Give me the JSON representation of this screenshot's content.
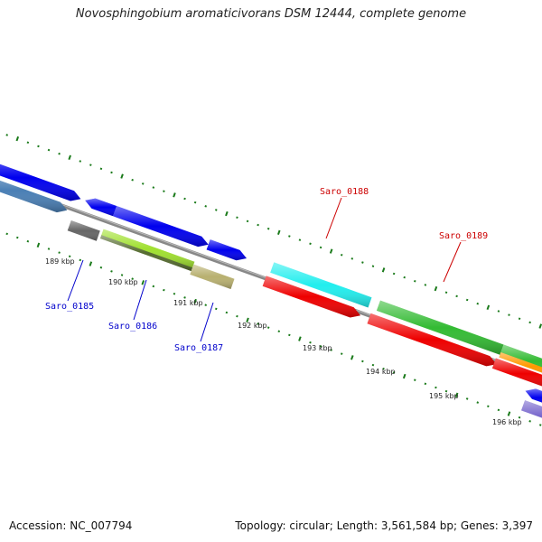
{
  "title": "Novosphingobium aromaticivorans DSM 12444, complete genome",
  "accession": "Accession: NC_007794",
  "summary": "Topology: circular; Length: 3,561,584 bp; Genes: 3,397",
  "kbp_labels": [
    "189 kbp",
    "190 kbp",
    "191 kbp",
    "192 kbp",
    "193 kbp",
    "194 kbp",
    "195 kbp",
    "196 kbp"
  ],
  "gene_labels": [
    {
      "text": "Saro_0185",
      "color": "#0000cc"
    },
    {
      "text": "Saro_0186",
      "color": "#0000cc"
    },
    {
      "text": "Saro_0187",
      "color": "#0000cc"
    },
    {
      "text": "Saro_0188",
      "color": "#cc0000"
    },
    {
      "text": "Saro_0189",
      "color": "#cc0000"
    }
  ],
  "colors": {
    "backbone": "#888888",
    "tick": "#1a7a1a",
    "blue": "#0000ee",
    "steel": "#4a7fb5",
    "gray": "#666666",
    "lime": "#a0e030",
    "olive": "#b8b070",
    "cyan": "#22eeee",
    "red": "#ee0000",
    "green": "#33bb33",
    "orange": "#ff9900",
    "purple": "#7766cc"
  }
}
